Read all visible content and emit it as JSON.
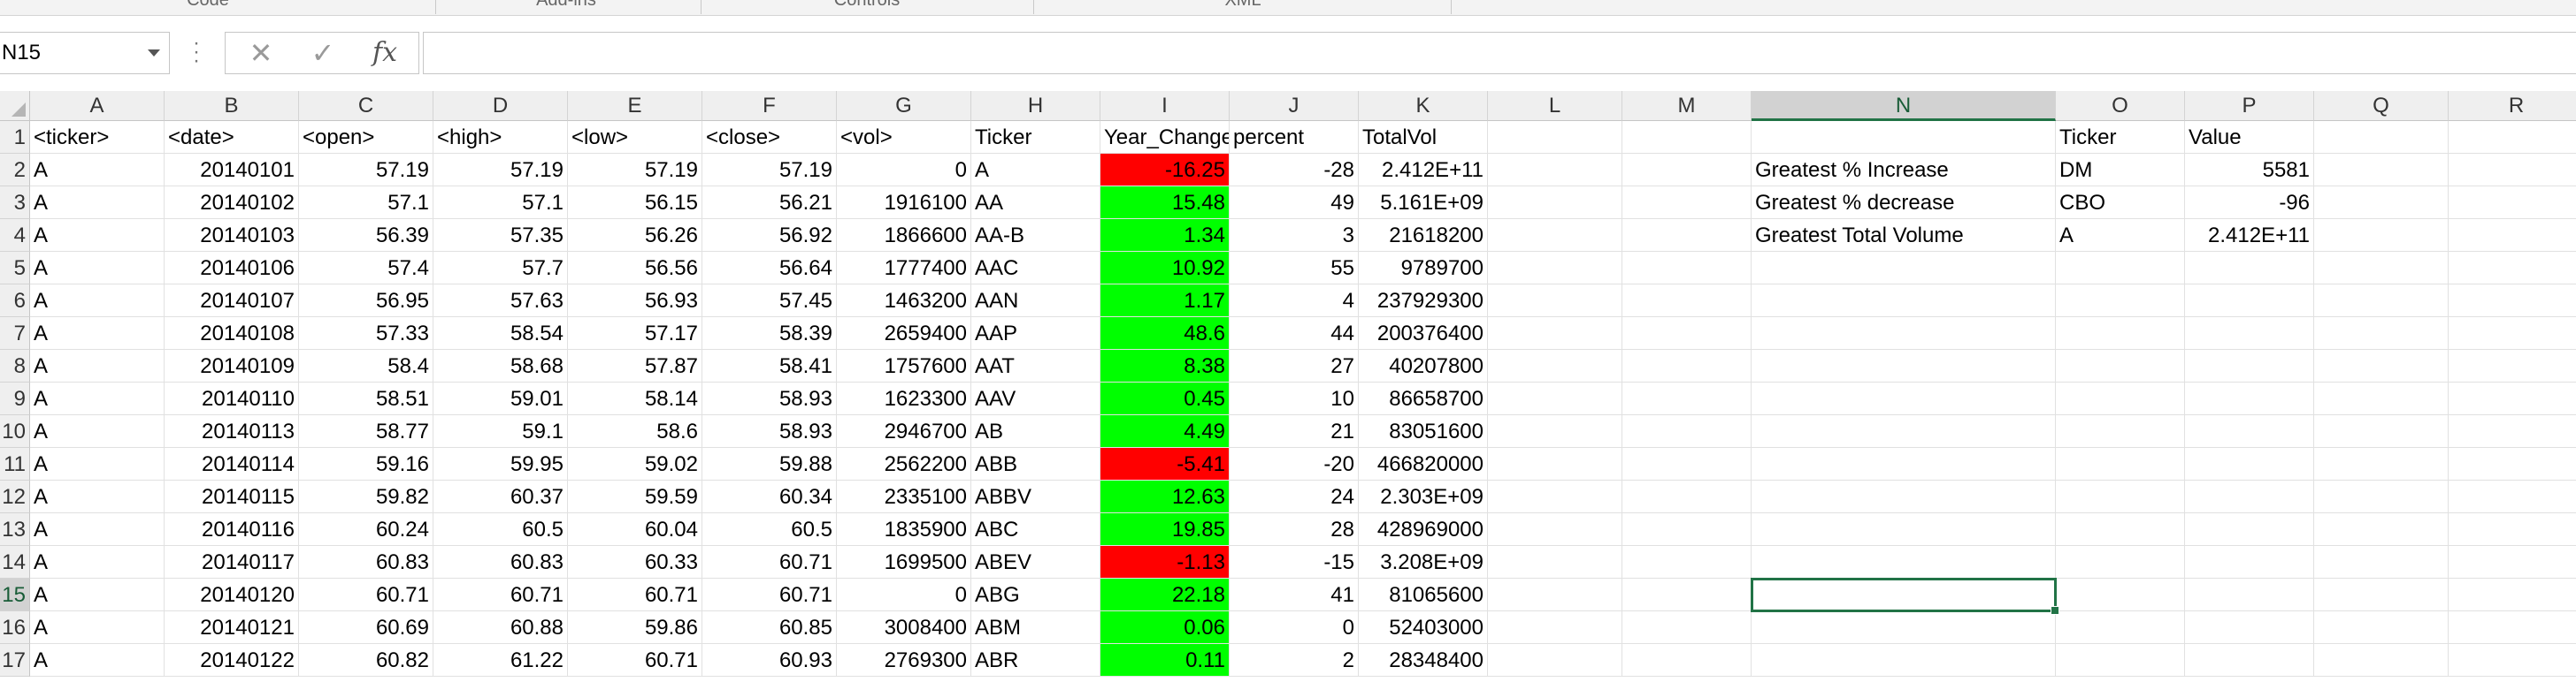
{
  "ribbon": {
    "groups": [
      "Code",
      "Add-ins",
      "Controls",
      "XML"
    ]
  },
  "formula_bar": {
    "name_box": "N15",
    "cancel_icon": "close-icon",
    "enter_icon": "check-icon",
    "fx_label": "fx",
    "content": ""
  },
  "selection": {
    "cell": "N15"
  },
  "colors": {
    "negative": "#ff0000",
    "positive": "#00ff00",
    "accent": "#217346"
  },
  "columns": [
    "A",
    "B",
    "C",
    "D",
    "E",
    "F",
    "G",
    "H",
    "I",
    "J",
    "K",
    "L",
    "M",
    "N",
    "O",
    "P",
    "Q",
    "R"
  ],
  "rows": [
    "1",
    "2",
    "3",
    "4",
    "5",
    "6",
    "7",
    "8",
    "9",
    "10",
    "11",
    "12",
    "13",
    "14",
    "15",
    "16",
    "17"
  ],
  "headers": {
    "A": "<ticker>",
    "B": "<date>",
    "C": "<open>",
    "D": "<high>",
    "E": "<low>",
    "F": "<close>",
    "G": "<vol>",
    "H": "Ticker",
    "I": "Year_Change",
    "J": "percent",
    "K": "TotalVol",
    "O": "Ticker",
    "P": "Value"
  },
  "raw_rows": [
    [
      "A",
      "20140101",
      "57.19",
      "57.19",
      "57.19",
      "57.19",
      "0"
    ],
    [
      "A",
      "20140102",
      "57.1",
      "57.1",
      "56.15",
      "56.21",
      "1916100"
    ],
    [
      "A",
      "20140103",
      "56.39",
      "57.35",
      "56.26",
      "56.92",
      "1866600"
    ],
    [
      "A",
      "20140106",
      "57.4",
      "57.7",
      "56.56",
      "56.64",
      "1777400"
    ],
    [
      "A",
      "20140107",
      "56.95",
      "57.63",
      "56.93",
      "57.45",
      "1463200"
    ],
    [
      "A",
      "20140108",
      "57.33",
      "58.54",
      "57.17",
      "58.39",
      "2659400"
    ],
    [
      "A",
      "20140109",
      "58.4",
      "58.68",
      "57.87",
      "58.41",
      "1757600"
    ],
    [
      "A",
      "20140110",
      "58.51",
      "59.01",
      "58.14",
      "58.93",
      "1623300"
    ],
    [
      "A",
      "20140113",
      "58.77",
      "59.1",
      "58.6",
      "58.93",
      "2946700"
    ],
    [
      "A",
      "20140114",
      "59.16",
      "59.95",
      "59.02",
      "59.88",
      "2562200"
    ],
    [
      "A",
      "20140115",
      "59.82",
      "60.37",
      "59.59",
      "60.34",
      "2335100"
    ],
    [
      "A",
      "20140116",
      "60.24",
      "60.5",
      "60.04",
      "60.5",
      "1835900"
    ],
    [
      "A",
      "20140117",
      "60.83",
      "60.83",
      "60.33",
      "60.71",
      "1699500"
    ],
    [
      "A",
      "20140120",
      "60.71",
      "60.71",
      "60.71",
      "60.71",
      "0"
    ],
    [
      "A",
      "20140121",
      "60.69",
      "60.88",
      "59.86",
      "60.85",
      "3008400"
    ],
    [
      "A",
      "20140122",
      "60.82",
      "61.22",
      "60.71",
      "60.93",
      "2769300"
    ]
  ],
  "summary_rows": [
    {
      "ticker": "A",
      "change": "-16.25",
      "percent": "-28",
      "total": "2.412E+11",
      "status": "negative"
    },
    {
      "ticker": "AA",
      "change": "15.48",
      "percent": "49",
      "total": "5.161E+09",
      "status": "positive"
    },
    {
      "ticker": "AA-B",
      "change": "1.34",
      "percent": "3",
      "total": "21618200",
      "status": "positive"
    },
    {
      "ticker": "AAC",
      "change": "10.92",
      "percent": "55",
      "total": "9789700",
      "status": "positive"
    },
    {
      "ticker": "AAN",
      "change": "1.17",
      "percent": "4",
      "total": "237929300",
      "status": "positive"
    },
    {
      "ticker": "AAP",
      "change": "48.6",
      "percent": "44",
      "total": "200376400",
      "status": "positive"
    },
    {
      "ticker": "AAT",
      "change": "8.38",
      "percent": "27",
      "total": "40207800",
      "status": "positive"
    },
    {
      "ticker": "AAV",
      "change": "0.45",
      "percent": "10",
      "total": "86658700",
      "status": "positive"
    },
    {
      "ticker": "AB",
      "change": "4.49",
      "percent": "21",
      "total": "83051600",
      "status": "positive"
    },
    {
      "ticker": "ABB",
      "change": "-5.41",
      "percent": "-20",
      "total": "466820000",
      "status": "negative"
    },
    {
      "ticker": "ABBV",
      "change": "12.63",
      "percent": "24",
      "total": "2.303E+09",
      "status": "positive"
    },
    {
      "ticker": "ABC",
      "change": "19.85",
      "percent": "28",
      "total": "428969000",
      "status": "positive"
    },
    {
      "ticker": "ABEV",
      "change": "-1.13",
      "percent": "-15",
      "total": "3.208E+09",
      "status": "negative"
    },
    {
      "ticker": "ABG",
      "change": "22.18",
      "percent": "41",
      "total": "81065600",
      "status": "positive"
    },
    {
      "ticker": "ABM",
      "change": "0.06",
      "percent": "0",
      "total": "52403000",
      "status": "positive"
    },
    {
      "ticker": "ABR",
      "change": "0.11",
      "percent": "2",
      "total": "28348400",
      "status": "positive"
    }
  ],
  "greatest": [
    {
      "label": "Greatest % Increase",
      "ticker": "DM",
      "value": "5581"
    },
    {
      "label": "Greatest % decrease",
      "ticker": "CBO",
      "value": "-96"
    },
    {
      "label": "Greatest Total Volume",
      "ticker": "A",
      "value": "2.412E+11"
    }
  ]
}
